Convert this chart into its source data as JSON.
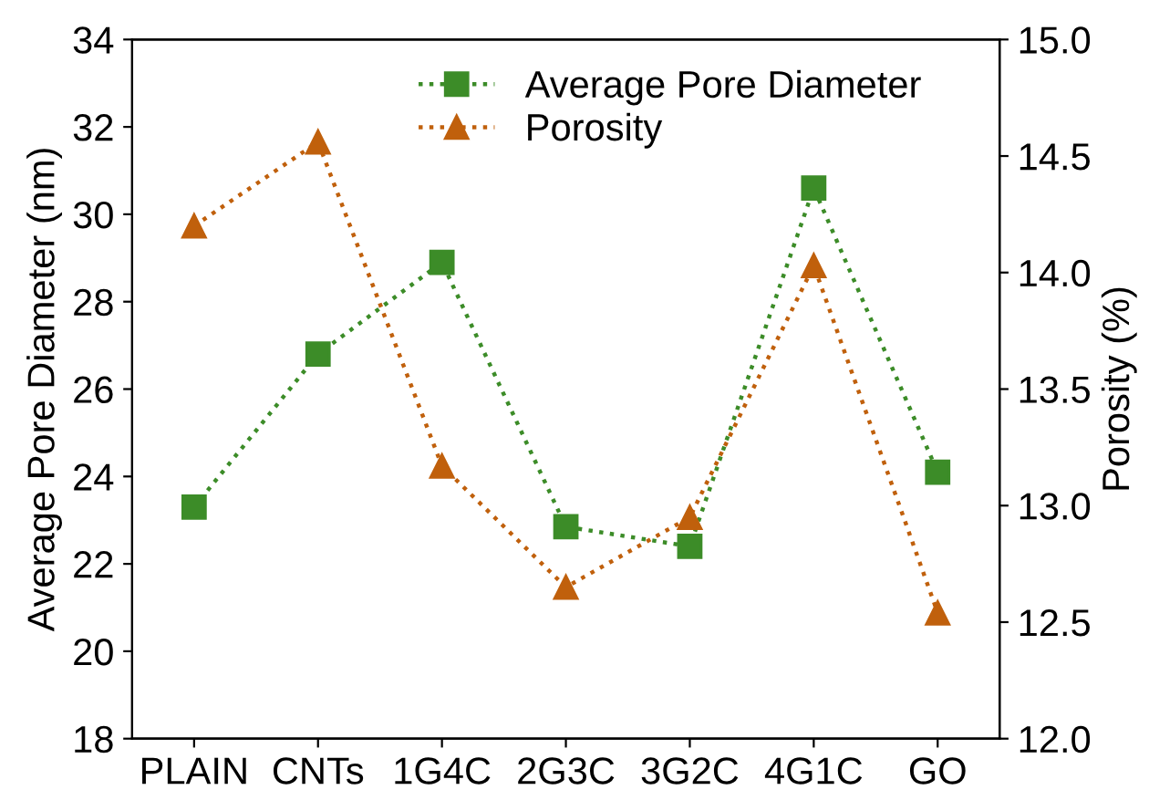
{
  "chart_data": {
    "type": "line",
    "ylabel": "Average Pore Diameter (nm)",
    "y2label": "Porosity (%)",
    "categories": [
      "PLAIN",
      "CNTs",
      "1G4C",
      "2G3C",
      "3G2C",
      "4G1C",
      "GO"
    ],
    "series": [
      {
        "name": "Average Pore Diameter",
        "color": "#3c8c28",
        "marker": "square",
        "line_style": "dotted",
        "values": [
          23.3,
          26.8,
          28.9,
          22.85,
          22.4,
          30.6,
          24.1
        ]
      },
      {
        "name": "Porosity",
        "color": "#c0600c",
        "marker": "triangle",
        "line_style": "dotted",
        "axis": "y2",
        "values": [
          14.2,
          14.56,
          13.17,
          12.65,
          12.95,
          14.03,
          12.54
        ]
      }
    ],
    "ylim": [
      18,
      34
    ],
    "yticks": [
      18,
      20,
      22,
      24,
      26,
      28,
      30,
      32,
      34
    ],
    "y2lim": [
      12.0,
      15.0
    ],
    "y2ticks": [
      {
        "value": 12.0,
        "label": "12.0"
      },
      {
        "value": 12.5,
        "label": "12.5"
      },
      {
        "value": 13.0,
        "label": "13.0"
      },
      {
        "value": 13.5,
        "label": "13.5"
      },
      {
        "value": 14.0,
        "label": "14.0"
      },
      {
        "value": 14.5,
        "label": "14.5"
      },
      {
        "value": 15.0,
        "label": "15.0"
      }
    ],
    "grid": false,
    "legend": "top"
  }
}
